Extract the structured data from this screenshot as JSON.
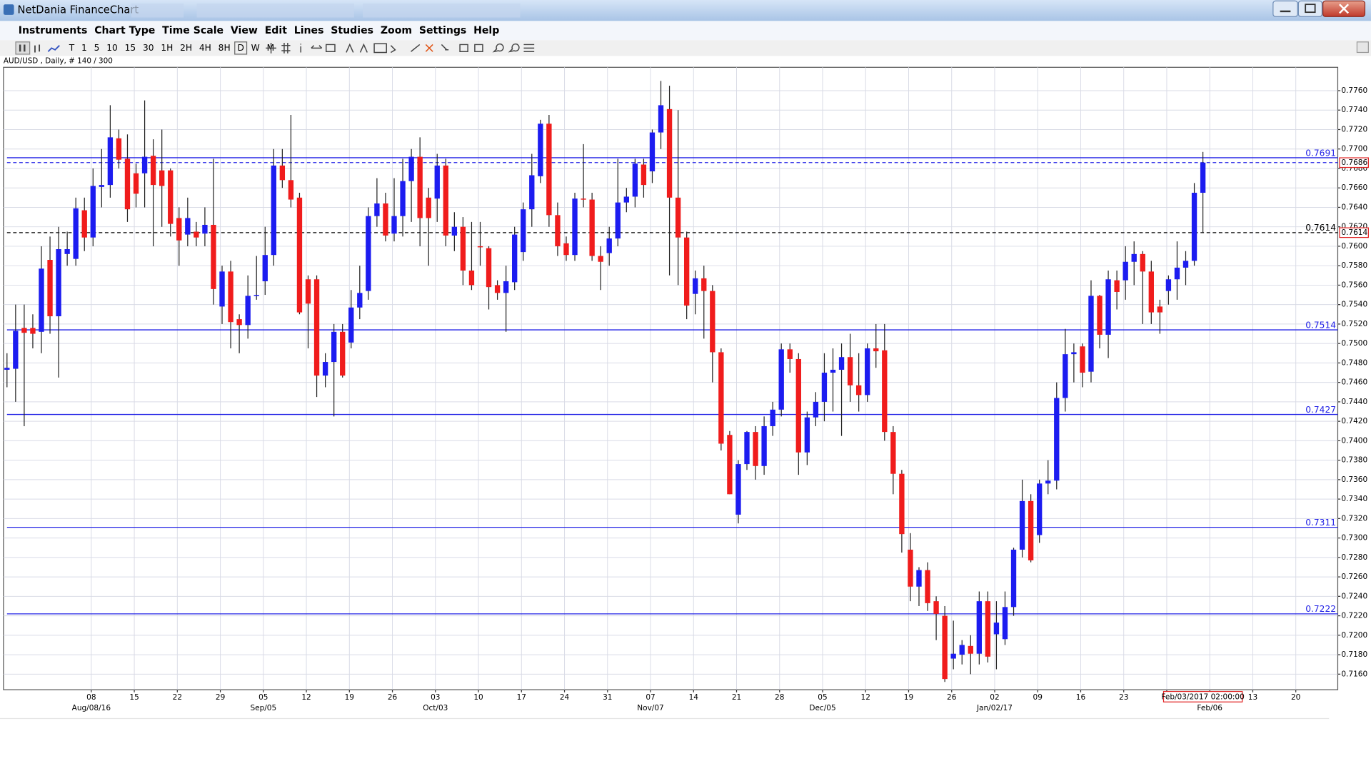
{
  "window": {
    "title": "NetDania FinanceChart",
    "menu": [
      "Instruments",
      "Chart Type",
      "Time Scale",
      "View",
      "Edit",
      "Lines",
      "Studies",
      "Zoom",
      "Settings",
      "Help"
    ],
    "toolbar": [
      "T",
      "1",
      "5",
      "10",
      "15",
      "30",
      "1H",
      "2H",
      "4H",
      "8H",
      "D",
      "W",
      "M"
    ]
  },
  "chart_data": {
    "type": "candlestick",
    "title": "AUD/USD , Daily, # 140 / 300",
    "up_color": "#1c1cf0",
    "down_color": "#f01c1c",
    "grid": true,
    "open": [
      0.7473,
      0.7474,
      0.7516,
      0.7516,
      0.7512,
      0.7586,
      0.7528,
      0.7592,
      0.7587,
      0.7637,
      0.7609,
      0.7661,
      0.7663,
      0.7711,
      0.769,
      0.7675,
      0.7675,
      0.7693,
      0.7678,
      0.7678,
      0.7629,
      0.7612,
      0.7615,
      0.7613,
      0.7622,
      0.7538,
      0.7574,
      0.7525,
      0.7519,
      0.7549,
      0.7564,
      0.7591,
      0.7683,
      0.7668,
      0.765,
      0.7566,
      0.7566,
      0.7467,
      0.7481,
      0.7512,
      0.7501,
      0.7537,
      0.7554,
      0.7631,
      0.7644,
      0.7613,
      0.7631,
      0.7667,
      0.7692,
      0.765,
      0.7649,
      0.7683,
      0.7611,
      0.762,
      0.7575,
      0.76,
      0.7598,
      0.756,
      0.7552,
      0.7563,
      0.7594,
      0.7638,
      0.7672,
      0.7726,
      0.7632,
      0.7603,
      0.7591,
      0.7649,
      0.7648,
      0.759,
      0.7593,
      0.7608,
      0.7645,
      0.7651,
      0.7684,
      0.7677,
      0.7717,
      0.7741,
      0.765,
      0.7609,
      0.7551,
      0.7567,
      0.7554,
      0.7491,
      0.7406,
      0.7324,
      0.7376,
      0.7409,
      0.7374,
      0.7415,
      0.7432,
      0.7494,
      0.7484,
      0.7388,
      0.7424,
      0.744,
      0.747,
      0.7473,
      0.7486,
      0.7457,
      0.7447,
      0.7495,
      0.7493,
      0.7409,
      0.7366,
      0.7288,
      0.725,
      0.7267,
      0.7235,
      0.722,
      0.7176,
      0.718,
      0.7189,
      0.7181,
      0.7235,
      0.7201,
      0.7196,
      0.7229,
      0.7288,
      0.7338,
      0.7303,
      0.7356,
      0.7359,
      0.7444,
      0.7489,
      0.7497,
      0.7471,
      0.7549,
      0.7509,
      0.7565,
      0.7565,
      0.7584,
      0.7592,
      0.7574,
      0.7538,
      0.7554,
      0.7566,
      0.7578,
      0.7585,
      0.7655
    ],
    "high": [
      0.749,
      0.754,
      0.754,
      0.753,
      0.76,
      0.761,
      0.762,
      0.7615,
      0.765,
      0.765,
      0.768,
      0.77,
      0.7745,
      0.772,
      0.7715,
      0.7685,
      0.775,
      0.771,
      0.772,
      0.768,
      0.764,
      0.765,
      0.7625,
      0.764,
      0.769,
      0.758,
      0.7585,
      0.753,
      0.757,
      0.759,
      0.762,
      0.77,
      0.77,
      0.7735,
      0.7655,
      0.757,
      0.757,
      0.749,
      0.752,
      0.752,
      0.7555,
      0.758,
      0.764,
      0.767,
      0.7655,
      0.767,
      0.769,
      0.77,
      0.7712,
      0.766,
      0.7695,
      0.769,
      0.7635,
      0.763,
      0.7625,
      0.7625,
      0.76,
      0.7565,
      0.758,
      0.762,
      0.7645,
      0.7695,
      0.773,
      0.7735,
      0.7645,
      0.761,
      0.7655,
      0.7705,
      0.7655,
      0.76,
      0.762,
      0.769,
      0.766,
      0.769,
      0.769,
      0.772,
      0.777,
      0.7765,
      0.774,
      0.7615,
      0.7575,
      0.758,
      0.756,
      0.7495,
      0.741,
      0.738,
      0.741,
      0.7415,
      0.7425,
      0.744,
      0.75,
      0.75,
      0.749,
      0.743,
      0.745,
      0.749,
      0.7495,
      0.75,
      0.751,
      0.749,
      0.75,
      0.752,
      0.752,
      0.7415,
      0.737,
      0.7305,
      0.727,
      0.7275,
      0.724,
      0.723,
      0.7215,
      0.7195,
      0.72,
      0.7245,
      0.7245,
      0.7235,
      0.7245,
      0.729,
      0.736,
      0.7345,
      0.736,
      0.738,
      0.746,
      0.7515,
      0.75,
      0.75,
      0.7565,
      0.755,
      0.7575,
      0.7575,
      0.76,
      0.7605,
      0.7595,
      0.7585,
      0.7545,
      0.757,
      0.7605,
      0.7595,
      0.7665,
      0.7697
    ],
    "low": [
      0.7455,
      0.744,
      0.7415,
      0.7495,
      0.749,
      0.751,
      0.7465,
      0.758,
      0.758,
      0.7595,
      0.76,
      0.764,
      0.765,
      0.768,
      0.7625,
      0.764,
      0.764,
      0.76,
      0.762,
      0.761,
      0.758,
      0.76,
      0.76,
      0.76,
      0.754,
      0.752,
      0.7495,
      0.749,
      0.7505,
      0.7545,
      0.755,
      0.758,
      0.766,
      0.764,
      0.753,
      0.7495,
      0.7445,
      0.7455,
      0.7425,
      0.7465,
      0.7495,
      0.7525,
      0.7545,
      0.762,
      0.7605,
      0.7605,
      0.761,
      0.7625,
      0.76,
      0.758,
      0.7625,
      0.76,
      0.7595,
      0.756,
      0.7555,
      0.758,
      0.7535,
      0.7545,
      0.7512,
      0.7555,
      0.7585,
      0.762,
      0.7665,
      0.762,
      0.759,
      0.7585,
      0.7585,
      0.764,
      0.7585,
      0.7555,
      0.758,
      0.76,
      0.7635,
      0.764,
      0.765,
      0.7665,
      0.77,
      0.757,
      0.756,
      0.7525,
      0.753,
      0.7505,
      0.746,
      0.739,
      0.7345,
      0.7315,
      0.737,
      0.736,
      0.7365,
      0.7405,
      0.7425,
      0.747,
      0.7365,
      0.7375,
      0.7415,
      0.742,
      0.743,
      0.7405,
      0.744,
      0.743,
      0.744,
      0.7475,
      0.74,
      0.7345,
      0.7285,
      0.7235,
      0.723,
      0.7225,
      0.7195,
      0.7152,
      0.7165,
      0.717,
      0.716,
      0.717,
      0.7172,
      0.7165,
      0.719,
      0.722,
      0.728,
      0.7275,
      0.7295,
      0.7345,
      0.735,
      0.743,
      0.746,
      0.7455,
      0.746,
      0.7495,
      0.7485,
      0.7535,
      0.7545,
      0.756,
      0.752,
      0.752,
      0.751,
      0.754,
      0.7545,
      0.756,
      0.758,
      0.7614
    ],
    "close": [
      0.7475,
      0.7513,
      0.7511,
      0.751,
      0.7577,
      0.7528,
      0.7597,
      0.7597,
      0.7639,
      0.7609,
      0.7662,
      0.7663,
      0.7712,
      0.7689,
      0.7638,
      0.7654,
      0.7692,
      0.7663,
      0.7662,
      0.7623,
      0.7606,
      0.7629,
      0.7609,
      0.7622,
      0.7556,
      0.7574,
      0.7522,
      0.7519,
      0.7549,
      0.755,
      0.7591,
      0.7683,
      0.7668,
      0.7648,
      0.7532,
      0.7541,
      0.7467,
      0.7481,
      0.7512,
      0.7467,
      0.7537,
      0.7552,
      0.7631,
      0.7644,
      0.7611,
      0.7631,
      0.7667,
      0.7692,
      0.7629,
      0.7629,
      0.7683,
      0.7611,
      0.762,
      0.7575,
      0.756,
      0.7599,
      0.7558,
      0.7552,
      0.7564,
      0.7612,
      0.7638,
      0.7673,
      0.7726,
      0.7632,
      0.76,
      0.7591,
      0.7649,
      0.7648,
      0.759,
      0.7584,
      0.7608,
      0.7645,
      0.7651,
      0.7685,
      0.7663,
      0.7717,
      0.7745,
      0.765,
      0.7609,
      0.7539,
      0.7567,
      0.7554,
      0.7491,
      0.7397,
      0.7345,
      0.7376,
      0.7409,
      0.7374,
      0.7415,
      0.7432,
      0.7494,
      0.7484,
      0.7388,
      0.7424,
      0.744,
      0.747,
      0.7473,
      0.7486,
      0.7457,
      0.7447,
      0.7495,
      0.7492,
      0.7409,
      0.7366,
      0.7304,
      0.725,
      0.7267,
      0.7233,
      0.7222,
      0.7155,
      0.7181,
      0.719,
      0.7181,
      0.7235,
      0.7178,
      0.7213,
      0.7229,
      0.7288,
      0.7338,
      0.7277,
      0.7356,
      0.7359,
      0.7444,
      0.7489,
      0.7491,
      0.747,
      0.7549,
      0.7509,
      0.7566,
      0.7553,
      0.7584,
      0.7592,
      0.7574,
      0.7532,
      0.7532,
      0.7566,
      0.7578,
      0.7585,
      0.7655,
      0.7686
    ],
    "ylim": [
      0.7144,
      0.7784
    ],
    "yticks": [
      {
        "value": 0.716,
        "label": "0.7160"
      },
      {
        "value": 0.718,
        "label": "0.7180"
      },
      {
        "value": 0.72,
        "label": "0.7200"
      },
      {
        "value": 0.722,
        "label": "0.7220"
      },
      {
        "value": 0.724,
        "label": "0.7240"
      },
      {
        "value": 0.726,
        "label": "0.7260"
      },
      {
        "value": 0.728,
        "label": "0.7280"
      },
      {
        "value": 0.73,
        "label": "0.7300"
      },
      {
        "value": 0.732,
        "label": "0.7320"
      },
      {
        "value": 0.734,
        "label": "0.7340"
      },
      {
        "value": 0.736,
        "label": "0.7360"
      },
      {
        "value": 0.738,
        "label": "0.7380"
      },
      {
        "value": 0.74,
        "label": "0.7400"
      },
      {
        "value": 0.742,
        "label": "0.7420"
      },
      {
        "value": 0.744,
        "label": "0.7440"
      },
      {
        "value": 0.746,
        "label": "0.7460"
      },
      {
        "value": 0.748,
        "label": "0.7480"
      },
      {
        "value": 0.75,
        "label": "0.7500"
      },
      {
        "value": 0.752,
        "label": "0.7520"
      },
      {
        "value": 0.754,
        "label": "0.7540"
      },
      {
        "value": 0.756,
        "label": "0.7560"
      },
      {
        "value": 0.758,
        "label": "0.7580"
      },
      {
        "value": 0.76,
        "label": "0.7600"
      },
      {
        "value": 0.762,
        "label": "0.7620"
      },
      {
        "value": 0.764,
        "label": "0.7640"
      },
      {
        "value": 0.766,
        "label": "0.7660"
      },
      {
        "value": 0.768,
        "label": "0.7680"
      },
      {
        "value": 0.77,
        "label": "0.7700"
      },
      {
        "value": 0.772,
        "label": "0.7720"
      },
      {
        "value": 0.774,
        "label": "0.7740"
      },
      {
        "value": 0.776,
        "label": "0.7760"
      }
    ],
    "x_labels": [
      "08",
      "15",
      "22",
      "29",
      "05",
      "12",
      "19",
      "26",
      "03",
      "10",
      "17",
      "24",
      "31",
      "07",
      "14",
      "21",
      "28",
      "05",
      "12",
      "19",
      "26",
      "02",
      "09",
      "16",
      "23",
      null,
      null,
      "13",
      "20"
    ],
    "x_month_labels": [
      "Aug/08/16",
      null,
      null,
      null,
      "Sep/05",
      null,
      null,
      null,
      "Oct/03",
      null,
      null,
      null,
      null,
      "Nov/07",
      null,
      null,
      null,
      "Dec/05",
      null,
      null,
      null,
      "Jan/02/17",
      null,
      null,
      null,
      null,
      "Feb/06",
      null,
      null
    ],
    "levels": [
      0.7691,
      0.7514,
      0.7427,
      0.7311,
      0.7222
    ],
    "level_color": "#2323e6",
    "price_lines": [
      {
        "value": 0.7686,
        "color": "#2323e6",
        "label": false
      },
      {
        "value": 0.7614,
        "color": "#000000",
        "label": true
      }
    ],
    "cursor_label": "Feb/03/2017 02:00:00"
  }
}
